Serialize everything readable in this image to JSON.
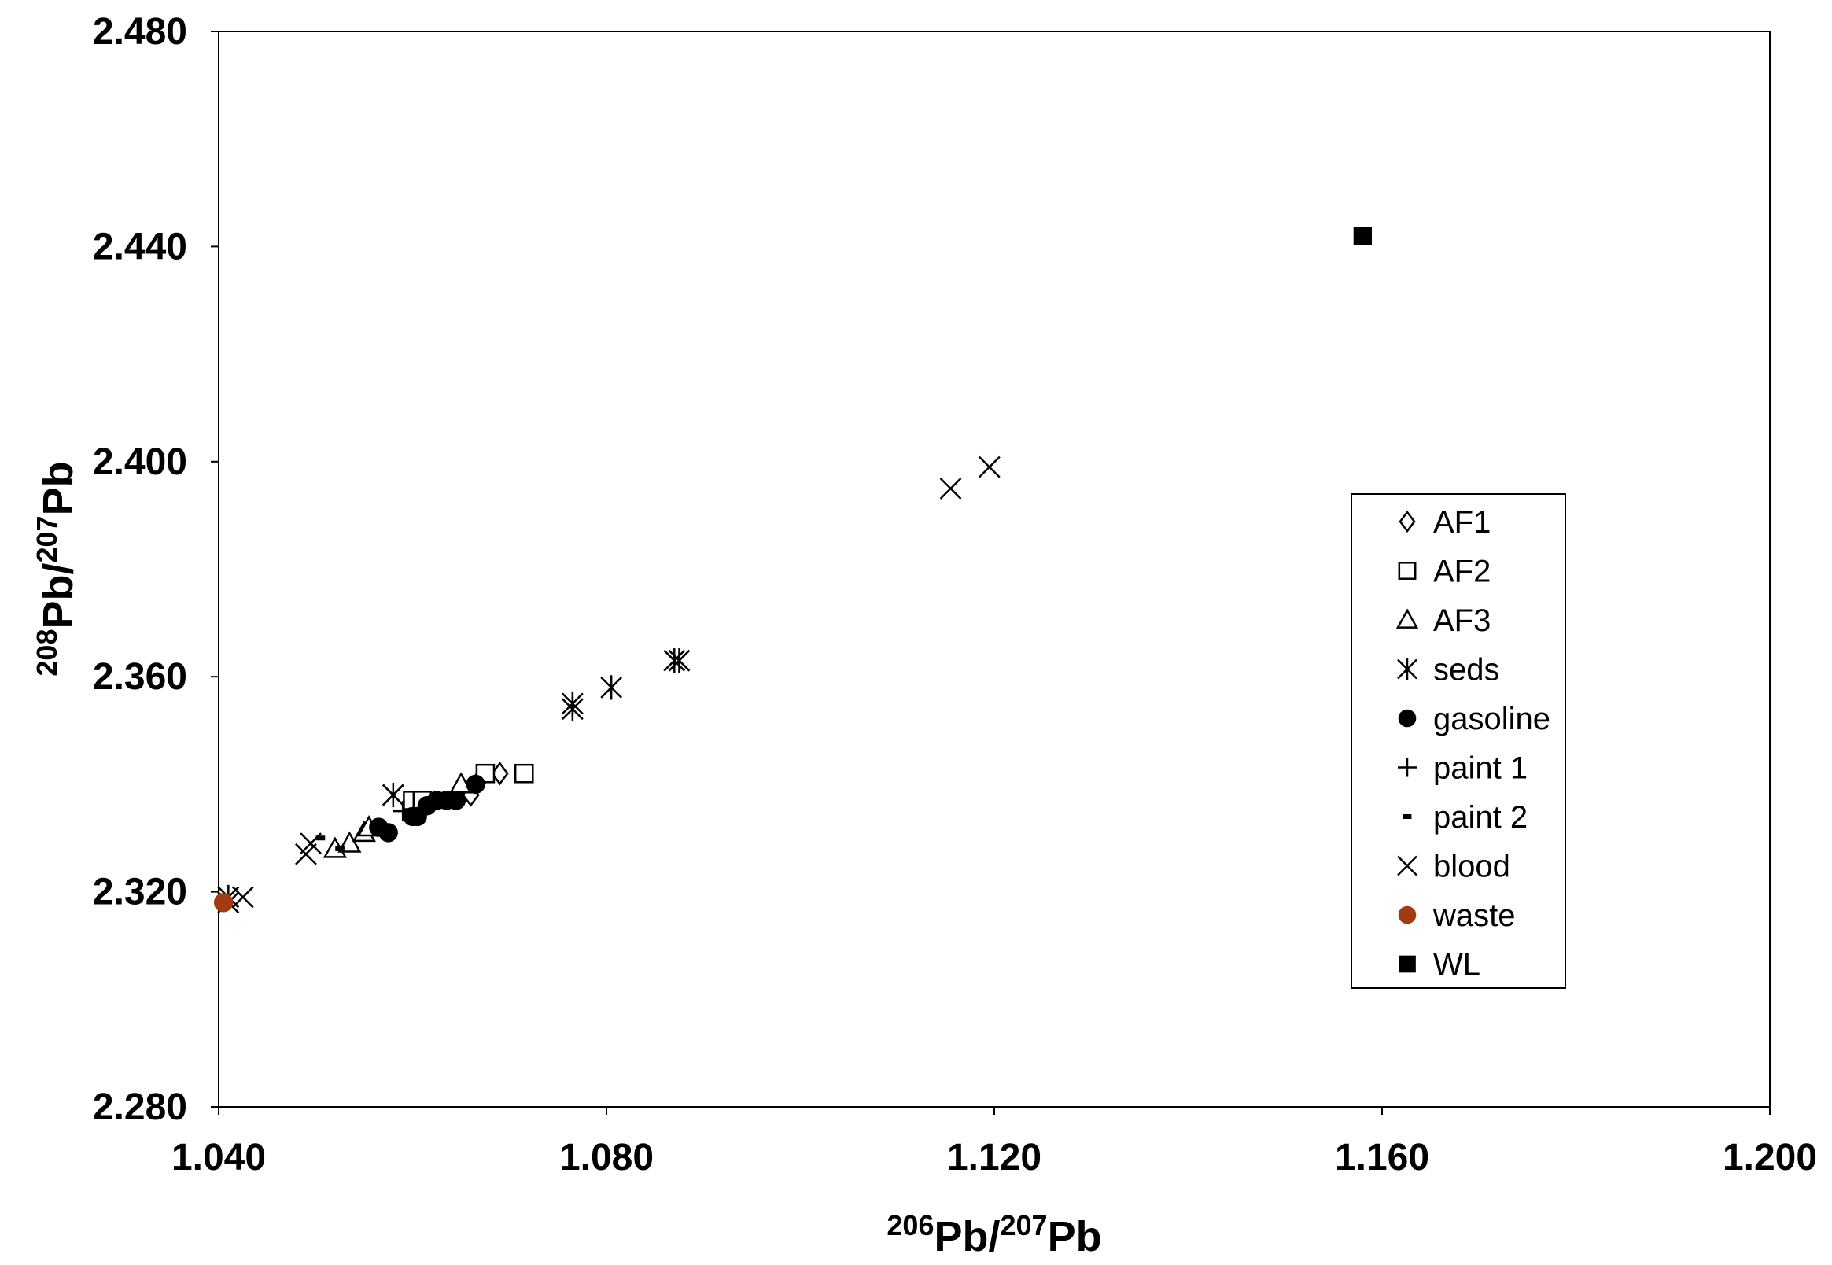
{
  "chart_data": {
    "type": "scatter",
    "title": "",
    "xlabel": {
      "sup1": "206",
      "base1": "Pb/",
      "sup2": "207",
      "base2": "Pb"
    },
    "ylabel": {
      "sup1": "208",
      "base1": "Pb/",
      "sup2": "207",
      "base2": "Pb"
    },
    "xlim": [
      1.04,
      1.2
    ],
    "ylim": [
      2.28,
      2.48
    ],
    "x_ticks": [
      1.04,
      1.08,
      1.12,
      1.16,
      1.2
    ],
    "y_ticks": [
      2.28,
      2.32,
      2.36,
      2.4,
      2.44,
      2.48
    ],
    "x_tick_labels": [
      "1.040",
      "1.080",
      "1.120",
      "1.160",
      "1.200"
    ],
    "y_tick_labels": [
      "2.280",
      "2.320",
      "2.360",
      "2.400",
      "2.440",
      "2.480"
    ],
    "grid": false,
    "legend_position": "right",
    "series": [
      {
        "name": "AF1",
        "marker": "diamond-open",
        "color": "#000000",
        "points": [
          [
            1.066,
            2.338
          ],
          [
            1.069,
            2.342
          ],
          [
            1.067,
            2.341
          ]
        ]
      },
      {
        "name": "AF2",
        "marker": "square-open",
        "color": "#000000",
        "points": [
          [
            1.0675,
            2.342
          ],
          [
            1.0715,
            2.342
          ],
          [
            1.06,
            2.337
          ],
          [
            1.061,
            2.337
          ]
        ]
      },
      {
        "name": "AF3",
        "marker": "triangle-open",
        "color": "#000000",
        "points": [
          [
            1.052,
            2.328
          ],
          [
            1.0535,
            2.329
          ],
          [
            1.055,
            2.331
          ],
          [
            1.0555,
            2.332
          ],
          [
            1.065,
            2.34
          ]
        ]
      },
      {
        "name": "seds",
        "marker": "asterisk",
        "color": "#000000",
        "points": [
          [
            1.0765,
            2.354
          ],
          [
            1.0765,
            2.355
          ],
          [
            1.0805,
            2.358
          ],
          [
            1.087,
            2.363
          ],
          [
            1.0875,
            2.363
          ],
          [
            1.058,
            2.338
          ],
          [
            1.041,
            2.319
          ]
        ]
      },
      {
        "name": "gasoline",
        "marker": "circle-filled",
        "color": "#000000",
        "points": [
          [
            1.0565,
            2.332
          ],
          [
            1.0575,
            2.331
          ],
          [
            1.06,
            2.334
          ],
          [
            1.0605,
            2.334
          ],
          [
            1.0615,
            2.336
          ],
          [
            1.0625,
            2.337
          ],
          [
            1.0635,
            2.337
          ],
          [
            1.0645,
            2.337
          ],
          [
            1.0665,
            2.34
          ]
        ]
      },
      {
        "name": "paint 1",
        "marker": "plus",
        "color": "#000000",
        "points": [
          [
            1.059,
            2.335
          ]
        ]
      },
      {
        "name": "paint 2",
        "marker": "dash",
        "color": "#000000",
        "points": [
          [
            1.0505,
            2.33
          ],
          [
            1.0525,
            2.328
          ]
        ]
      },
      {
        "name": "blood",
        "marker": "x",
        "color": "#000000",
        "points": [
          [
            1.041,
            2.318
          ],
          [
            1.0425,
            2.319
          ],
          [
            1.049,
            2.327
          ],
          [
            1.0495,
            2.329
          ],
          [
            1.058,
            2.338
          ],
          [
            1.1155,
            2.395
          ],
          [
            1.1195,
            2.399
          ]
        ]
      },
      {
        "name": "waste",
        "marker": "circle-filled",
        "color": "#a33a12",
        "points": [
          [
            1.0405,
            2.318
          ]
        ]
      },
      {
        "name": "WL",
        "marker": "square-filled",
        "color": "#000000",
        "points": [
          [
            1.158,
            2.442
          ]
        ]
      }
    ]
  }
}
